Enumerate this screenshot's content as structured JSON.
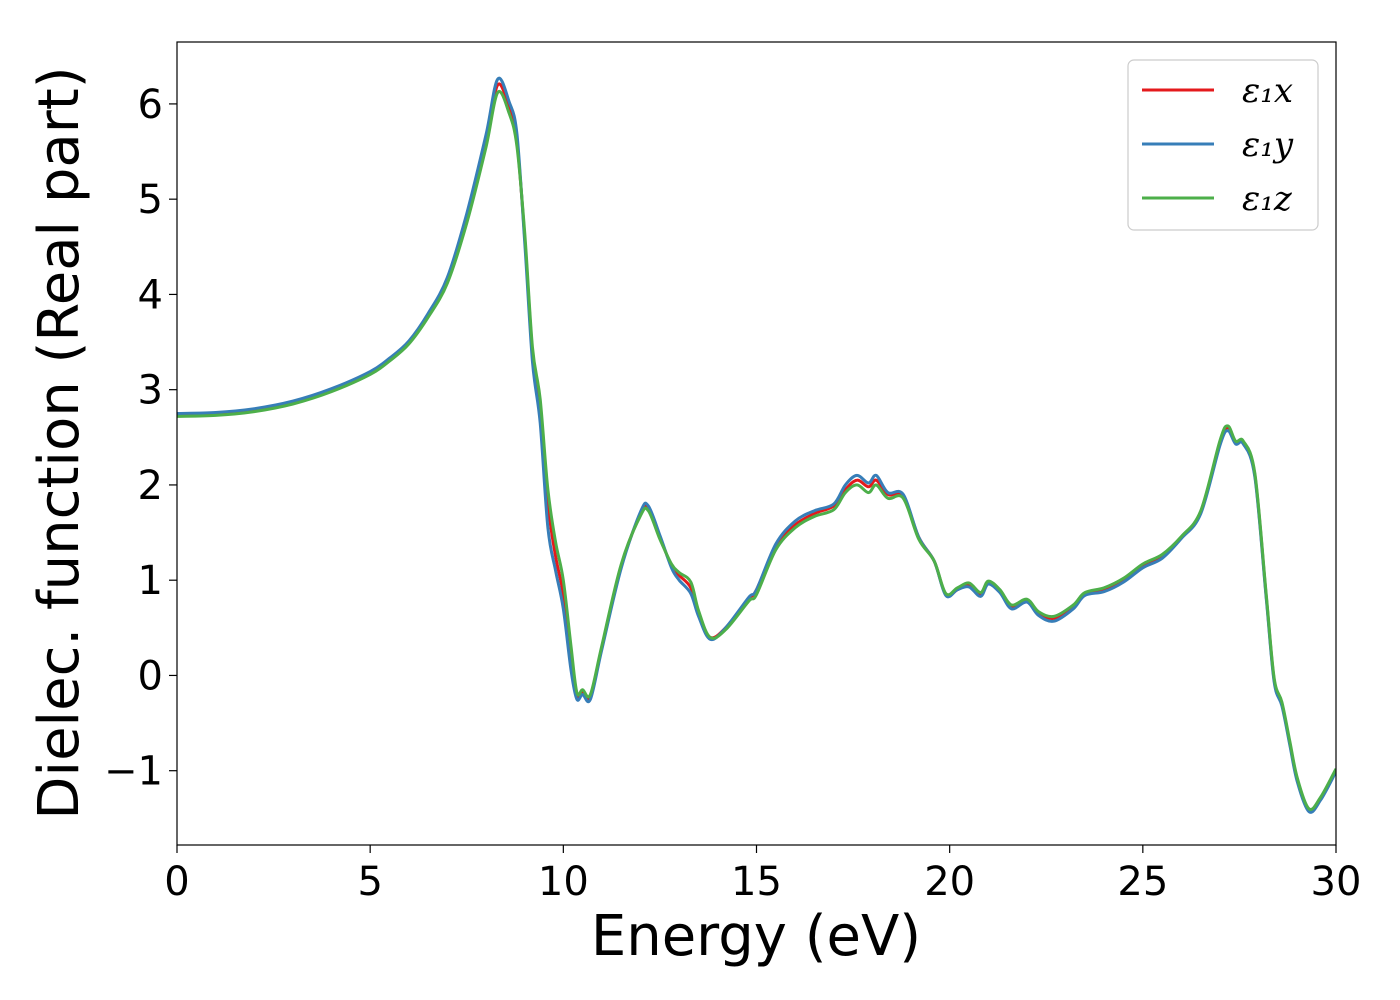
{
  "chart_data": {
    "type": "line",
    "title": "",
    "xlabel": "Energy (eV)",
    "ylabel": "Dielec. function (Real part)",
    "xlim": [
      0,
      30
    ],
    "ylim": [
      -1.78,
      6.65
    ],
    "xticks": [
      0,
      5,
      10,
      15,
      20,
      25,
      30
    ],
    "xtick_labels": [
      "0",
      "5",
      "10",
      "15",
      "20",
      "25",
      "30"
    ],
    "yticks": [
      -1,
      0,
      1,
      2,
      3,
      4,
      5,
      6
    ],
    "ytick_labels": [
      "−1",
      "0",
      "1",
      "2",
      "3",
      "4",
      "5",
      "6"
    ],
    "grid": false,
    "legend_position": "top-right",
    "series": [
      {
        "name": "ε₁x",
        "color": "#e41a1c",
        "points": [
          [
            0,
            2.74
          ],
          [
            1,
            2.75
          ],
          [
            2,
            2.79
          ],
          [
            3,
            2.87
          ],
          [
            4,
            3.0
          ],
          [
            5,
            3.18
          ],
          [
            5.5,
            3.32
          ],
          [
            6,
            3.5
          ],
          [
            6.5,
            3.78
          ],
          [
            7,
            4.15
          ],
          [
            7.5,
            4.8
          ],
          [
            8,
            5.6
          ],
          [
            8.3,
            6.2
          ],
          [
            8.6,
            5.95
          ],
          [
            8.8,
            5.6
          ],
          [
            9.0,
            4.6
          ],
          [
            9.2,
            3.4
          ],
          [
            9.4,
            2.8
          ],
          [
            9.6,
            1.8
          ],
          [
            9.8,
            1.25
          ],
          [
            10.0,
            0.85
          ],
          [
            10.2,
            0.2
          ],
          [
            10.35,
            -0.2
          ],
          [
            10.5,
            -0.18
          ],
          [
            10.7,
            -0.22
          ],
          [
            11.0,
            0.3
          ],
          [
            11.5,
            1.15
          ],
          [
            12.0,
            1.7
          ],
          [
            12.2,
            1.75
          ],
          [
            12.5,
            1.45
          ],
          [
            12.8,
            1.15
          ],
          [
            13.0,
            1.05
          ],
          [
            13.3,
            0.92
          ],
          [
            13.5,
            0.65
          ],
          [
            13.8,
            0.4
          ],
          [
            14.2,
            0.5
          ],
          [
            14.8,
            0.8
          ],
          [
            15.0,
            0.9
          ],
          [
            15.5,
            1.35
          ],
          [
            16.0,
            1.58
          ],
          [
            16.5,
            1.7
          ],
          [
            17.0,
            1.78
          ],
          [
            17.3,
            1.95
          ],
          [
            17.6,
            2.05
          ],
          [
            17.9,
            1.98
          ],
          [
            18.1,
            2.05
          ],
          [
            18.4,
            1.9
          ],
          [
            18.8,
            1.88
          ],
          [
            19.2,
            1.45
          ],
          [
            19.6,
            1.2
          ],
          [
            19.9,
            0.85
          ],
          [
            20.2,
            0.9
          ],
          [
            20.5,
            0.95
          ],
          [
            20.8,
            0.85
          ],
          [
            21.0,
            0.97
          ],
          [
            21.3,
            0.88
          ],
          [
            21.6,
            0.72
          ],
          [
            22.0,
            0.78
          ],
          [
            22.3,
            0.65
          ],
          [
            22.7,
            0.6
          ],
          [
            23.2,
            0.72
          ],
          [
            23.5,
            0.85
          ],
          [
            24.0,
            0.9
          ],
          [
            24.5,
            1.0
          ],
          [
            25.0,
            1.15
          ],
          [
            25.5,
            1.25
          ],
          [
            26.0,
            1.45
          ],
          [
            26.5,
            1.72
          ],
          [
            27.0,
            2.45
          ],
          [
            27.2,
            2.6
          ],
          [
            27.4,
            2.45
          ],
          [
            27.6,
            2.45
          ],
          [
            27.9,
            2.1
          ],
          [
            28.2,
            0.8
          ],
          [
            28.4,
            -0.05
          ],
          [
            28.6,
            -0.3
          ],
          [
            28.8,
            -0.7
          ],
          [
            29.0,
            -1.1
          ],
          [
            29.3,
            -1.42
          ],
          [
            29.6,
            -1.3
          ],
          [
            30,
            -1.0
          ]
        ]
      },
      {
        "name": "ε₁y",
        "color": "#377eb8",
        "points": [
          [
            0,
            2.75
          ],
          [
            1,
            2.76
          ],
          [
            2,
            2.8
          ],
          [
            3,
            2.88
          ],
          [
            4,
            3.01
          ],
          [
            5,
            3.19
          ],
          [
            5.5,
            3.33
          ],
          [
            6,
            3.51
          ],
          [
            6.5,
            3.8
          ],
          [
            7,
            4.18
          ],
          [
            7.5,
            4.85
          ],
          [
            8,
            5.68
          ],
          [
            8.3,
            6.26
          ],
          [
            8.6,
            6.02
          ],
          [
            8.8,
            5.68
          ],
          [
            9.0,
            4.55
          ],
          [
            9.2,
            3.3
          ],
          [
            9.4,
            2.65
          ],
          [
            9.6,
            1.55
          ],
          [
            9.8,
            1.1
          ],
          [
            10.0,
            0.7
          ],
          [
            10.2,
            0.05
          ],
          [
            10.35,
            -0.25
          ],
          [
            10.5,
            -0.2
          ],
          [
            10.7,
            -0.25
          ],
          [
            11.0,
            0.28
          ],
          [
            11.5,
            1.13
          ],
          [
            12.0,
            1.72
          ],
          [
            12.2,
            1.78
          ],
          [
            12.5,
            1.47
          ],
          [
            12.8,
            1.13
          ],
          [
            13.0,
            1.0
          ],
          [
            13.3,
            0.86
          ],
          [
            13.5,
            0.62
          ],
          [
            13.8,
            0.38
          ],
          [
            14.2,
            0.5
          ],
          [
            14.8,
            0.82
          ],
          [
            15.0,
            0.9
          ],
          [
            15.5,
            1.38
          ],
          [
            16.0,
            1.62
          ],
          [
            16.5,
            1.73
          ],
          [
            17.0,
            1.8
          ],
          [
            17.3,
            2.0
          ],
          [
            17.6,
            2.1
          ],
          [
            17.9,
            2.02
          ],
          [
            18.1,
            2.1
          ],
          [
            18.4,
            1.92
          ],
          [
            18.8,
            1.9
          ],
          [
            19.2,
            1.45
          ],
          [
            19.6,
            1.2
          ],
          [
            19.9,
            0.84
          ],
          [
            20.2,
            0.9
          ],
          [
            20.5,
            0.93
          ],
          [
            20.8,
            0.83
          ],
          [
            21.0,
            0.96
          ],
          [
            21.3,
            0.87
          ],
          [
            21.6,
            0.7
          ],
          [
            22.0,
            0.77
          ],
          [
            22.3,
            0.63
          ],
          [
            22.7,
            0.57
          ],
          [
            23.2,
            0.7
          ],
          [
            23.5,
            0.84
          ],
          [
            24.0,
            0.88
          ],
          [
            24.5,
            0.98
          ],
          [
            25.0,
            1.13
          ],
          [
            25.5,
            1.23
          ],
          [
            26.0,
            1.44
          ],
          [
            26.5,
            1.7
          ],
          [
            27.0,
            2.42
          ],
          [
            27.2,
            2.57
          ],
          [
            27.4,
            2.43
          ],
          [
            27.6,
            2.43
          ],
          [
            27.9,
            2.08
          ],
          [
            28.2,
            0.78
          ],
          [
            28.4,
            -0.07
          ],
          [
            28.6,
            -0.32
          ],
          [
            28.8,
            -0.72
          ],
          [
            29.0,
            -1.12
          ],
          [
            29.3,
            -1.43
          ],
          [
            29.6,
            -1.31
          ],
          [
            30,
            -1.01
          ]
        ]
      },
      {
        "name": "ε₁z",
        "color": "#4daf4a",
        "points": [
          [
            0,
            2.72
          ],
          [
            1,
            2.73
          ],
          [
            2,
            2.77
          ],
          [
            3,
            2.85
          ],
          [
            4,
            2.98
          ],
          [
            5,
            3.16
          ],
          [
            5.5,
            3.3
          ],
          [
            6,
            3.48
          ],
          [
            6.5,
            3.76
          ],
          [
            7,
            4.12
          ],
          [
            7.5,
            4.75
          ],
          [
            8,
            5.55
          ],
          [
            8.3,
            6.12
          ],
          [
            8.6,
            5.9
          ],
          [
            8.8,
            5.55
          ],
          [
            9.0,
            4.65
          ],
          [
            9.2,
            3.45
          ],
          [
            9.4,
            2.9
          ],
          [
            9.6,
            1.95
          ],
          [
            9.8,
            1.4
          ],
          [
            10.0,
            1.0
          ],
          [
            10.2,
            0.3
          ],
          [
            10.35,
            -0.18
          ],
          [
            10.5,
            -0.15
          ],
          [
            10.7,
            -0.2
          ],
          [
            11.0,
            0.32
          ],
          [
            11.5,
            1.17
          ],
          [
            12.0,
            1.68
          ],
          [
            12.2,
            1.73
          ],
          [
            12.5,
            1.43
          ],
          [
            12.8,
            1.17
          ],
          [
            13.0,
            1.08
          ],
          [
            13.3,
            0.98
          ],
          [
            13.5,
            0.68
          ],
          [
            13.8,
            0.4
          ],
          [
            14.2,
            0.48
          ],
          [
            14.8,
            0.78
          ],
          [
            15.0,
            0.85
          ],
          [
            15.5,
            1.32
          ],
          [
            16.0,
            1.55
          ],
          [
            16.5,
            1.67
          ],
          [
            17.0,
            1.74
          ],
          [
            17.3,
            1.92
          ],
          [
            17.6,
            2.0
          ],
          [
            17.9,
            1.92
          ],
          [
            18.1,
            2.0
          ],
          [
            18.4,
            1.86
          ],
          [
            18.8,
            1.86
          ],
          [
            19.2,
            1.43
          ],
          [
            19.6,
            1.2
          ],
          [
            19.9,
            0.86
          ],
          [
            20.2,
            0.92
          ],
          [
            20.5,
            0.97
          ],
          [
            20.8,
            0.87
          ],
          [
            21.0,
            0.99
          ],
          [
            21.3,
            0.9
          ],
          [
            21.6,
            0.74
          ],
          [
            22.0,
            0.8
          ],
          [
            22.3,
            0.67
          ],
          [
            22.7,
            0.62
          ],
          [
            23.2,
            0.74
          ],
          [
            23.5,
            0.87
          ],
          [
            24.0,
            0.92
          ],
          [
            24.5,
            1.02
          ],
          [
            25.0,
            1.17
          ],
          [
            25.5,
            1.27
          ],
          [
            26.0,
            1.46
          ],
          [
            26.5,
            1.73
          ],
          [
            27.0,
            2.47
          ],
          [
            27.2,
            2.62
          ],
          [
            27.4,
            2.46
          ],
          [
            27.6,
            2.46
          ],
          [
            27.9,
            2.12
          ],
          [
            28.2,
            0.82
          ],
          [
            28.4,
            -0.03
          ],
          [
            28.6,
            -0.28
          ],
          [
            28.8,
            -0.68
          ],
          [
            29.0,
            -1.08
          ],
          [
            29.3,
            -1.4
          ],
          [
            29.6,
            -1.28
          ],
          [
            30,
            -0.98
          ]
        ]
      }
    ]
  }
}
